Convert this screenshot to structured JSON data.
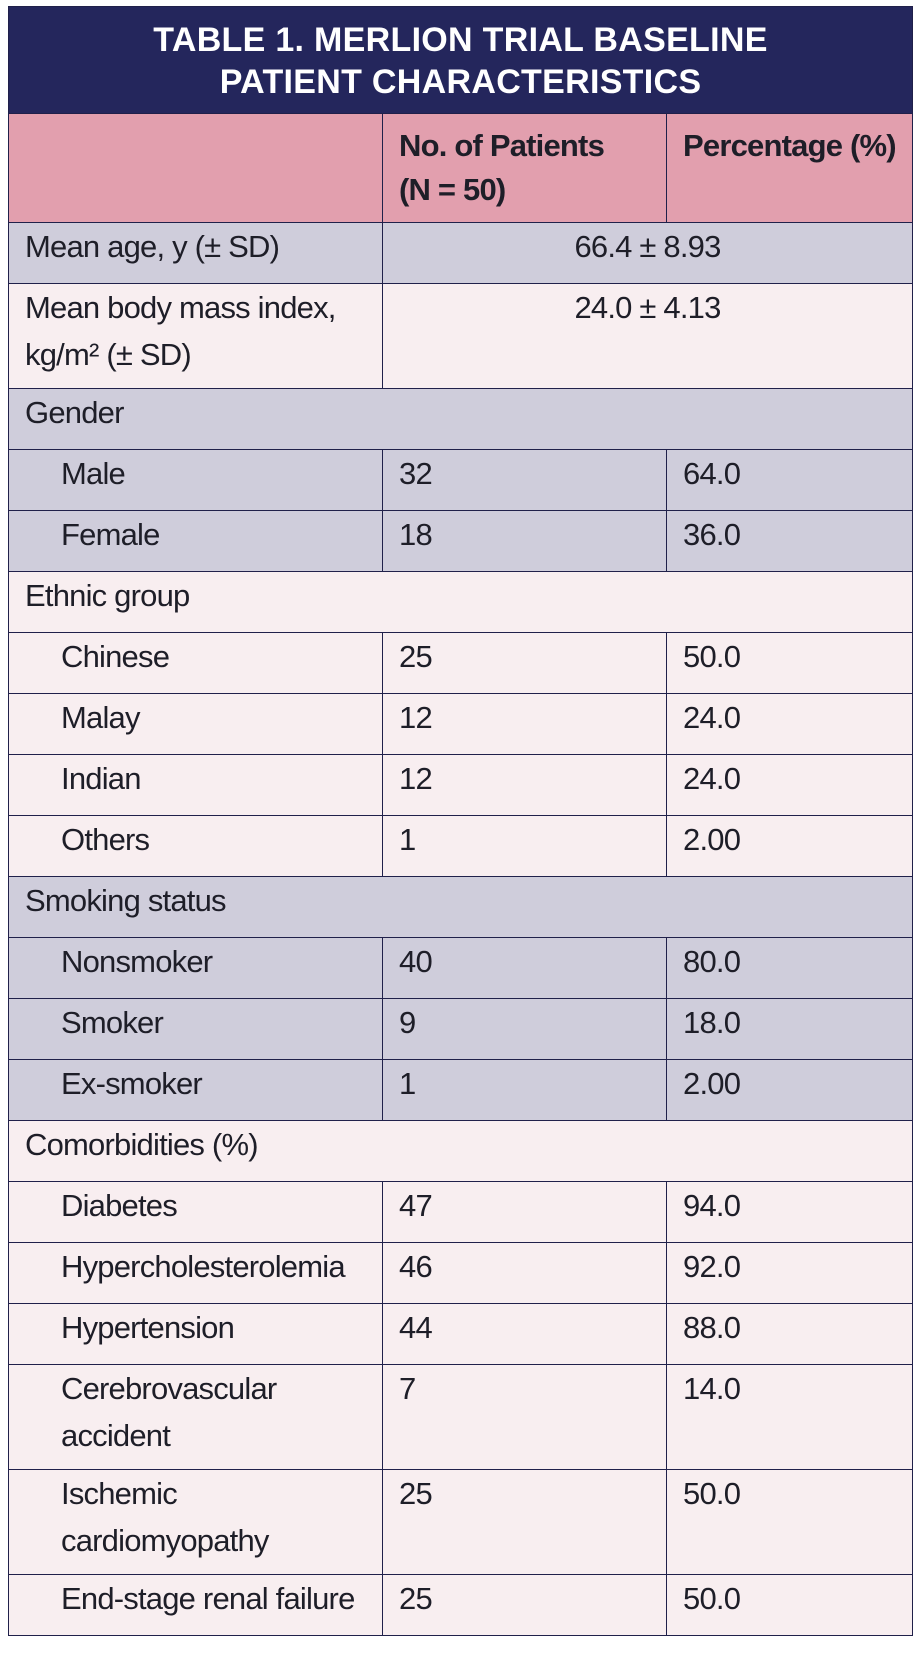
{
  "table": {
    "title_line1": "TABLE 1.  MERLION TRIAL BASELINE",
    "title_line2": "PATIENT CHARACTERISTICS",
    "header": {
      "col1": "",
      "col2_line1": "No. of Patients",
      "col2_line2": "(N = 50)",
      "col3": "Percentage (%)"
    },
    "mean_age": {
      "label": "Mean age, y (± SD)",
      "value": "66.4 ± 8.93"
    },
    "mean_bmi": {
      "label_line1": "Mean body mass index,",
      "label_line2": "kg/m² (± SD)",
      "value": "24.0 ± 4.13"
    },
    "gender": {
      "label": "Gender",
      "rows": [
        {
          "label": "Male",
          "count": "32",
          "pct": "64.0"
        },
        {
          "label": "Female",
          "count": "18",
          "pct": "36.0"
        }
      ]
    },
    "ethnic": {
      "label": "Ethnic group",
      "rows": [
        {
          "label": "Chinese",
          "count": "25",
          "pct": "50.0"
        },
        {
          "label": "Malay",
          "count": "12",
          "pct": "24.0"
        },
        {
          "label": "Indian",
          "count": "12",
          "pct": "24.0"
        },
        {
          "label": "Others",
          "count": "1",
          "pct": "2.00"
        }
      ]
    },
    "smoking": {
      "label": "Smoking status",
      "rows": [
        {
          "label": "Nonsmoker",
          "count": "40",
          "pct": "80.0"
        },
        {
          "label": "Smoker",
          "count": "9",
          "pct": "18.0"
        },
        {
          "label": "Ex-smoker",
          "count": "1",
          "pct": "2.00"
        }
      ]
    },
    "comorbidities": {
      "label": "Comorbidities (%)",
      "rows": [
        {
          "label": "Diabetes",
          "count": "47",
          "pct": "94.0"
        },
        {
          "label": "Hypercholesterolemia",
          "count": "46",
          "pct": "92.0"
        },
        {
          "label": "Hypertension",
          "count": "44",
          "pct": "88.0"
        },
        {
          "label_line1": "Cerebrovascular",
          "label_line2": "accident",
          "count": "7",
          "pct": "14.0"
        },
        {
          "label_line1": "Ischemic",
          "label_line2": "cardiomyopathy",
          "count": "25",
          "pct": "50.0"
        },
        {
          "label": "End-stage renal failure",
          "count": "25",
          "pct": "50.0"
        }
      ]
    }
  }
}
